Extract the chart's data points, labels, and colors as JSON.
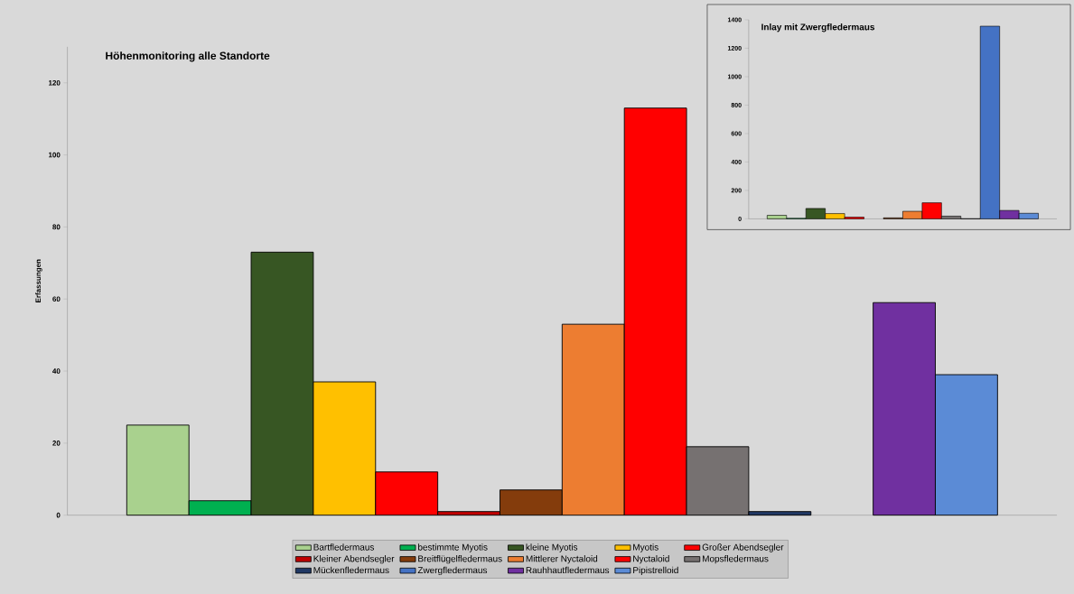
{
  "chart_data": [
    {
      "type": "bar",
      "title": "Höhenmonitoring alle Standorte",
      "ylabel": "Erfassungen",
      "categories": [
        null
      ],
      "ylim": [
        0,
        130
      ],
      "yticks": [
        0,
        20,
        40,
        60,
        80,
        100,
        120
      ],
      "tick_labels": "y",
      "legend": "bottom",
      "series": [
        {
          "name": "Bartfledermaus",
          "color": "#a9d18e",
          "values": [
            25
          ]
        },
        {
          "name": "bestimmte Myotis",
          "color": "#00b050",
          "values": [
            4
          ]
        },
        {
          "name": "kleine Myotis",
          "color": "#375623",
          "values": [
            73
          ]
        },
        {
          "name": "Myotis",
          "color": "#ffc000",
          "values": [
            37
          ]
        },
        {
          "name": "Großer Abendsegler",
          "color": "#ff0000",
          "values": [
            12
          ]
        },
        {
          "name": "Kleiner Abendsegler",
          "color": "#c00000",
          "values": [
            1
          ]
        },
        {
          "name": "Breitflügelfledermaus",
          "color": "#843c0c",
          "values": [
            7
          ]
        },
        {
          "name": "Mittlerer Nyctaloid",
          "color": "#ed7d31",
          "values": [
            53
          ]
        },
        {
          "name": "Nyctaloid",
          "color": "#ff0000",
          "values": [
            113
          ]
        },
        {
          "name": "Mopsfledermaus",
          "color": "#767171",
          "values": [
            19
          ]
        },
        {
          "name": "Mückenfledermaus",
          "color": "#203864",
          "values": [
            1
          ]
        },
        {
          "name": "Zwergfledermaus",
          "color": "#4472c4",
          "values": [
            null
          ]
        },
        {
          "name": "Rauhhautfledermaus",
          "color": "#7030a0",
          "values": [
            59
          ]
        },
        {
          "name": "Pipistrelloid",
          "color": "#5b8bd6",
          "values": [
            39
          ]
        }
      ]
    },
    {
      "type": "bar",
      "title": "Inlay mit Zwergfledermaus",
      "categories": [
        null
      ],
      "ylim": [
        0,
        1400
      ],
      "yticks": [
        0,
        200,
        400,
        600,
        800,
        1000,
        1200,
        1400
      ],
      "tick_labels": "y",
      "series": [
        {
          "color": "#a9d18e",
          "values": [
            25
          ]
        },
        {
          "color": "#00b050",
          "values": [
            4
          ]
        },
        {
          "color": "#375623",
          "values": [
            73
          ]
        },
        {
          "color": "#ffc000",
          "values": [
            37
          ]
        },
        {
          "color": "#ff0000",
          "values": [
            12
          ]
        },
        {
          "color": "#c00000",
          "values": [
            null
          ]
        },
        {
          "color": "#843c0c",
          "values": [
            7
          ]
        },
        {
          "color": "#ed7d31",
          "values": [
            53
          ]
        },
        {
          "color": "#ff0000",
          "values": [
            113
          ]
        },
        {
          "color": "#767171",
          "values": [
            19
          ]
        },
        {
          "color": "#203864",
          "values": [
            1
          ]
        },
        {
          "color": "#4472c4",
          "values": [
            1355
          ]
        },
        {
          "color": "#7030a0",
          "values": [
            59
          ]
        },
        {
          "color": "#5b8bd6",
          "values": [
            39
          ]
        }
      ]
    }
  ]
}
